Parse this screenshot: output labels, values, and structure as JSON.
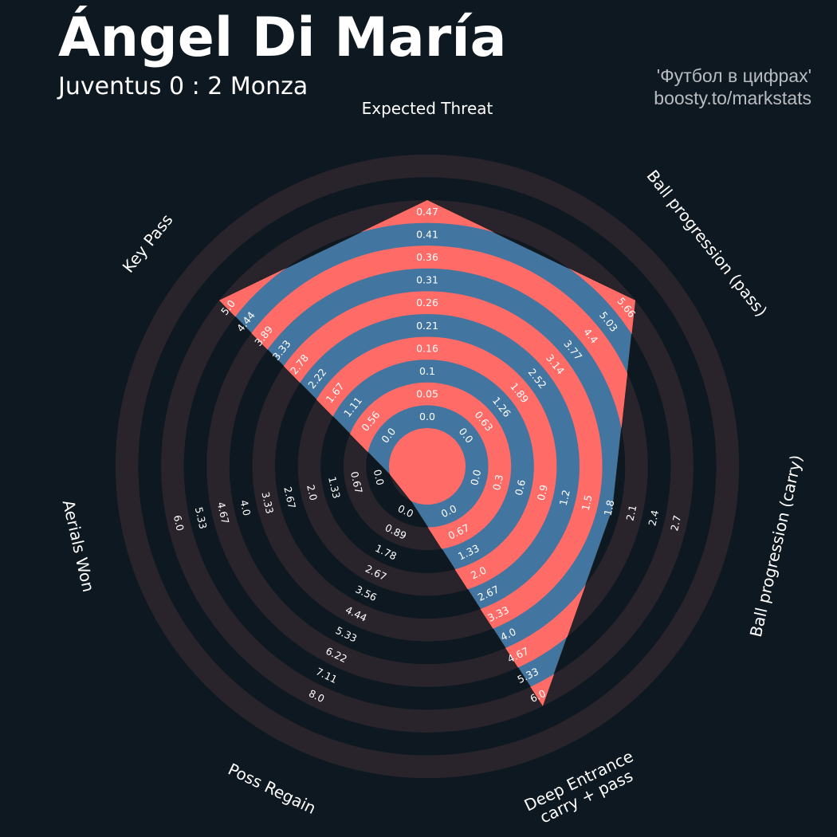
{
  "header": {
    "title": "Ángel Di María",
    "subtitle": "Juventus 0 : 2 Monza",
    "credit_line1": "'Футбол в цифрах'",
    "credit_line2": "boosty.to/markstats"
  },
  "colors": {
    "background": "#0e1821",
    "ring_dark": "#29242b",
    "polygon_fill": "#4275a0",
    "polygon_ring": "#ff6b66",
    "text": "#ffffff",
    "credit_text": "#b8bcc0"
  },
  "chart_data": {
    "type": "radar",
    "title": "Ángel Di María",
    "subtitle": "Juventus 0 : 2 Monza",
    "parameters": [
      {
        "label": "Expected Threat",
        "label_lines": [
          "Expected Threat"
        ],
        "value": 0.47,
        "min": 0.0,
        "max": 0.47,
        "ticks": [
          "0.0",
          "0.05",
          "0.1",
          "0.16",
          "0.21",
          "0.26",
          "0.31",
          "0.36",
          "0.41",
          "0.47"
        ]
      },
      {
        "label": "Ball progression (pass)",
        "label_lines": [
          "Ball progression (pass)"
        ],
        "value": 5.66,
        "min": 0.0,
        "max": 5.66,
        "ticks": [
          "0.0",
          "0.63",
          "1.26",
          "1.89",
          "2.52",
          "3.14",
          "3.77",
          "4.4",
          "5.03",
          "5.66"
        ]
      },
      {
        "label": "Ball progression (carry)",
        "label_lines": [
          "Ball progression (carry)"
        ],
        "value": 1.8,
        "min": 0.0,
        "max": 2.7,
        "ticks": [
          "0.0",
          "0.3",
          "0.6",
          "0.9",
          "1.2",
          "1.5",
          "1.8",
          "2.1",
          "2.4",
          "2.7"
        ]
      },
      {
        "label": "Deep Entrance carry + pass",
        "label_lines": [
          "Deep Entrance",
          "carry + pass"
        ],
        "value": 6.0,
        "min": 0.0,
        "max": 6.0,
        "ticks": [
          "0.0",
          "0.67",
          "1.33",
          "2.0",
          "2.67",
          "3.33",
          "4.0",
          "4.67",
          "5.33",
          "6.0"
        ]
      },
      {
        "label": "Poss Regain",
        "label_lines": [
          "Poss Regain"
        ],
        "value": 0.0,
        "min": 0.0,
        "max": 8.0,
        "ticks": [
          "0.0",
          "0.89",
          "1.78",
          "2.67",
          "3.56",
          "4.44",
          "5.33",
          "6.22",
          "7.11",
          "8.0"
        ]
      },
      {
        "label": "Aerials Won",
        "label_lines": [
          "Aerials Won"
        ],
        "value": 0.0,
        "min": 0.0,
        "max": 6.0,
        "ticks": [
          "0.0",
          "0.67",
          "1.33",
          "2.0",
          "2.67",
          "3.33",
          "4.0",
          "4.67",
          "5.33",
          "6.0"
        ]
      },
      {
        "label": "Key Pass",
        "label_lines": [
          "Key Pass"
        ],
        "value": 5.0,
        "min": 0.0,
        "max": 5.0,
        "ticks": [
          "0.0",
          "0.56",
          "1.11",
          "1.67",
          "2.22",
          "2.78",
          "3.33",
          "3.89",
          "4.44",
          "5.0"
        ]
      }
    ]
  }
}
